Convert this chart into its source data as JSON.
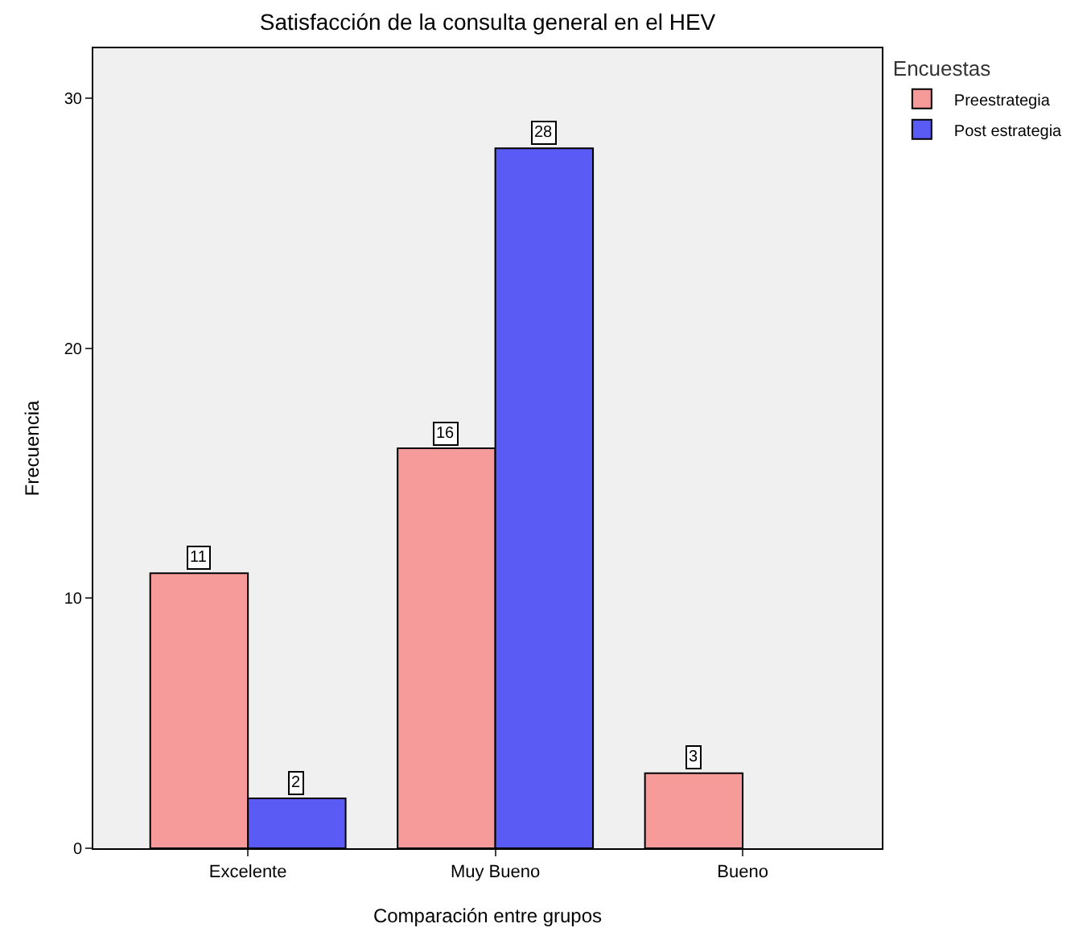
{
  "chart_data": {
    "type": "bar",
    "title": "Satisfacción de la consulta general en el HEV",
    "xlabel": "Comparación entre grupos",
    "ylabel": "Frecuencia",
    "legend_title": "Encuestas",
    "categories": [
      "Excelente",
      "Muy Bueno",
      "Bueno"
    ],
    "series": [
      {
        "name": "Preestrategia",
        "color": "#f79a9a",
        "values": [
          11,
          16,
          3
        ]
      },
      {
        "name": "Post estrategia",
        "color": "#5a5af5",
        "values": [
          2,
          28,
          null
        ]
      }
    ],
    "ylim": [
      0,
      32
    ],
    "yticks": [
      0,
      10,
      20,
      30
    ],
    "grid": false,
    "legend": "top right",
    "data_labels": true
  }
}
